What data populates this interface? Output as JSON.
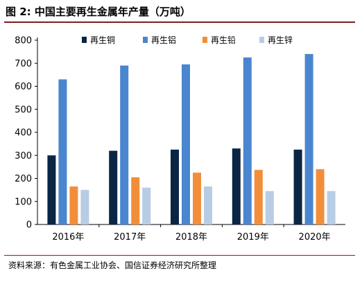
{
  "figure": {
    "title": "图 2:  中国主要再生金属年产量（万吨）",
    "source": "资料来源：有色金属工业协会、国信证券经济研究所整理"
  },
  "chart_data": {
    "type": "bar",
    "title": "",
    "xlabel": "",
    "ylabel": "",
    "categories": [
      "2016年",
      "2017年",
      "2018年",
      "2019年",
      "2020年"
    ],
    "ylim": [
      0,
      800
    ],
    "yticks": [
      0,
      100,
      200,
      300,
      400,
      500,
      600,
      700,
      800
    ],
    "grid": false,
    "legend_position": "top-right",
    "series": [
      {
        "name": "再生铜",
        "color": "#0b2545",
        "values": [
          300,
          320,
          325,
          330,
          325
        ]
      },
      {
        "name": "再生铝",
        "color": "#4a86cf",
        "values": [
          630,
          690,
          695,
          725,
          740
        ]
      },
      {
        "name": "再生铅",
        "color": "#f28e3a",
        "values": [
          165,
          205,
          225,
          237,
          240
        ]
      },
      {
        "name": "再生锌",
        "color": "#b8cce4",
        "values": [
          150,
          160,
          165,
          145,
          145
        ]
      }
    ]
  }
}
